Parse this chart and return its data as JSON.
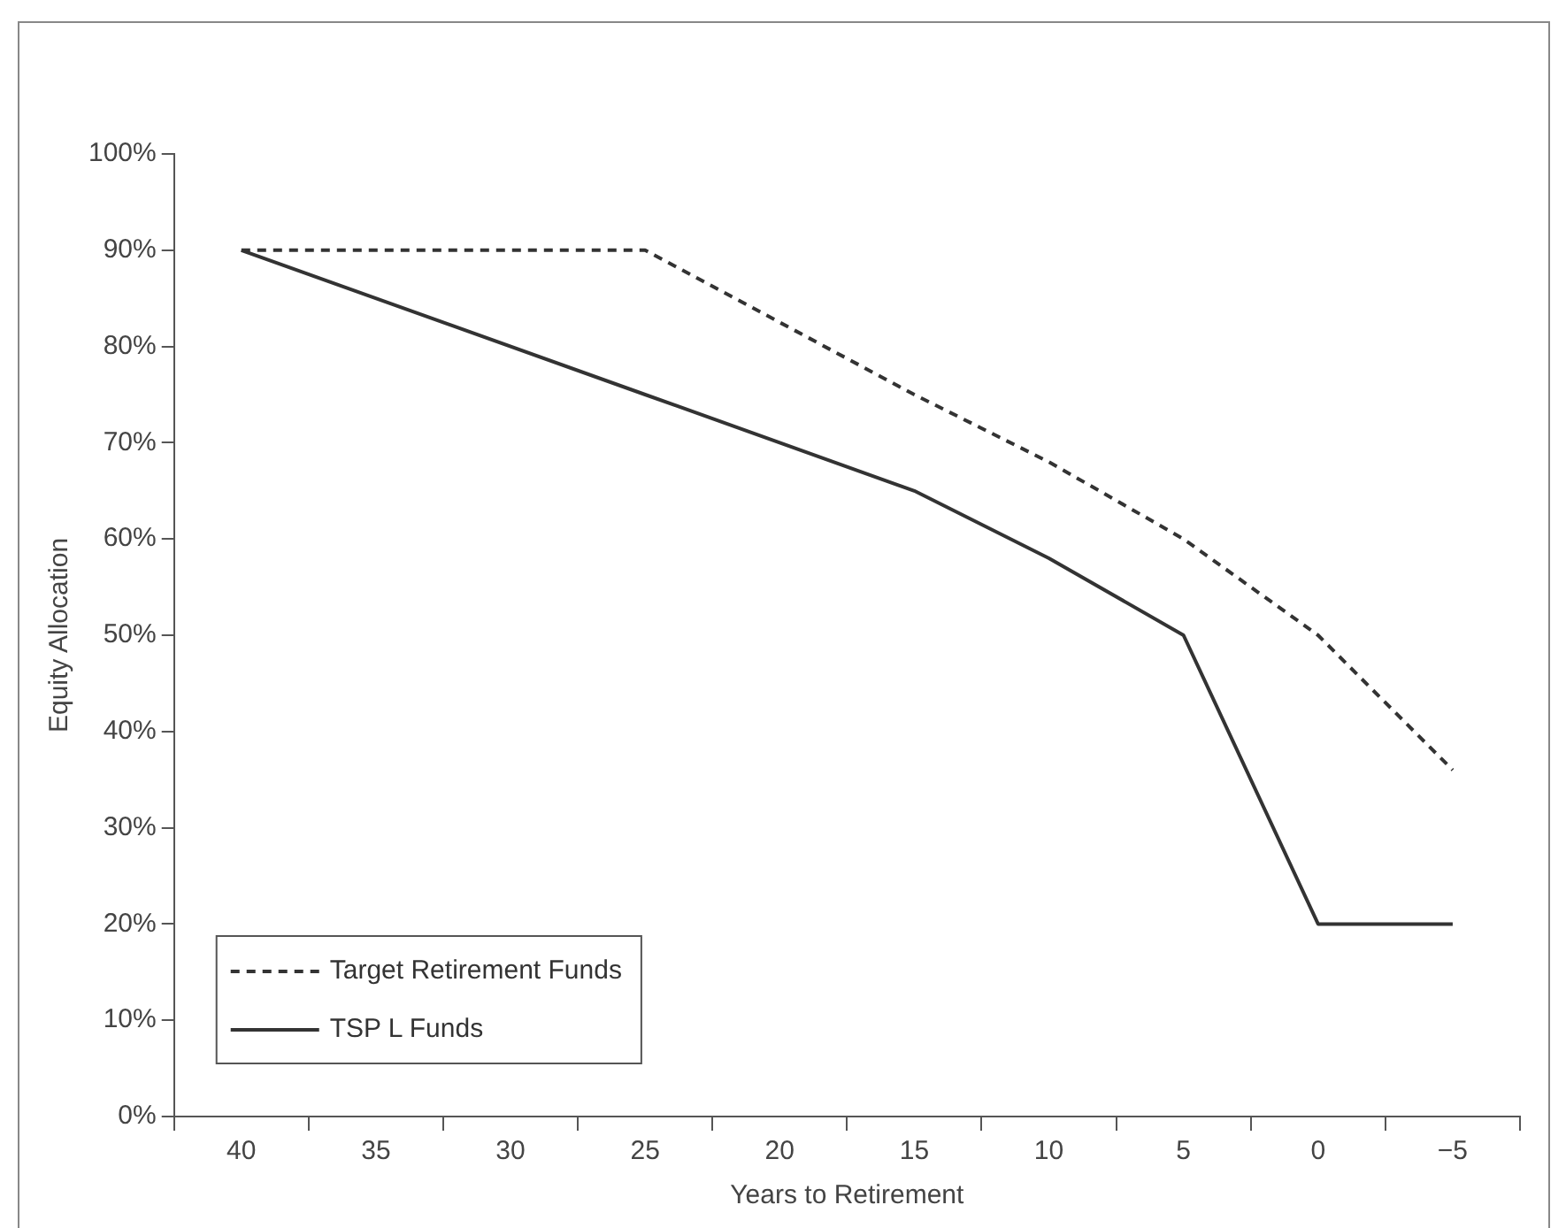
{
  "chart_data": {
    "type": "line",
    "xlabel": "Years to Retirement",
    "ylabel": "Equity Allocation",
    "categories": [
      "40",
      "35",
      "30",
      "25",
      "20",
      "15",
      "10",
      "5",
      "0",
      "−5"
    ],
    "series": [
      {
        "name": "Target Retirement Funds",
        "color": "#333333",
        "line_style": "dashed",
        "values": [
          90,
          null,
          null,
          90,
          null,
          75,
          68,
          60,
          50,
          36
        ]
      },
      {
        "name": "TSP L Funds",
        "color": "#333333",
        "line_style": "solid",
        "values": [
          90,
          null,
          null,
          75,
          null,
          65,
          58,
          50,
          20,
          20
        ]
      }
    ],
    "ylim": [
      0,
      100
    ],
    "yticks": [
      {
        "value": 0,
        "label": "0%"
      },
      {
        "value": 10,
        "label": "10%"
      },
      {
        "value": 20,
        "label": "20%"
      },
      {
        "value": 30,
        "label": "30%"
      },
      {
        "value": 40,
        "label": "40%"
      },
      {
        "value": 50,
        "label": "50%"
      },
      {
        "value": 60,
        "label": "60%"
      },
      {
        "value": 70,
        "label": "70%"
      },
      {
        "value": 80,
        "label": "80%"
      },
      {
        "value": 90,
        "label": "90%"
      },
      {
        "value": 100,
        "label": "100%"
      }
    ],
    "grid": false,
    "legend": "bottom left",
    "marker": "none"
  }
}
